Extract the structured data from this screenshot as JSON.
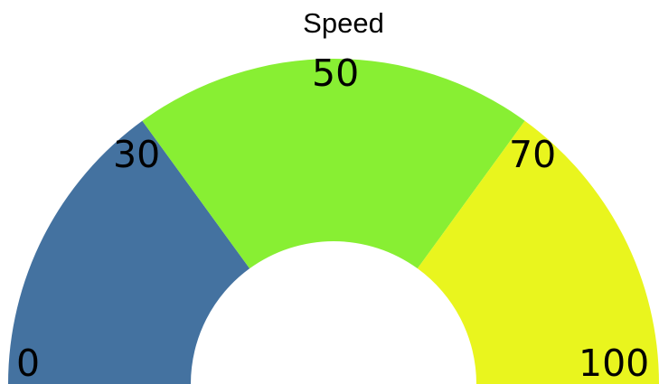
{
  "chart_data": {
    "type": "gauge",
    "title": "Speed",
    "min": 0,
    "max": 100,
    "bands": [
      {
        "from": 0,
        "to": 30,
        "color": "#4472A0"
      },
      {
        "from": 30,
        "to": 70,
        "color": "#88EF33"
      },
      {
        "from": 70,
        "to": 100,
        "color": "#E9F51E"
      }
    ],
    "tick_labels": [
      "0",
      "30",
      "50",
      "70",
      "100"
    ]
  }
}
